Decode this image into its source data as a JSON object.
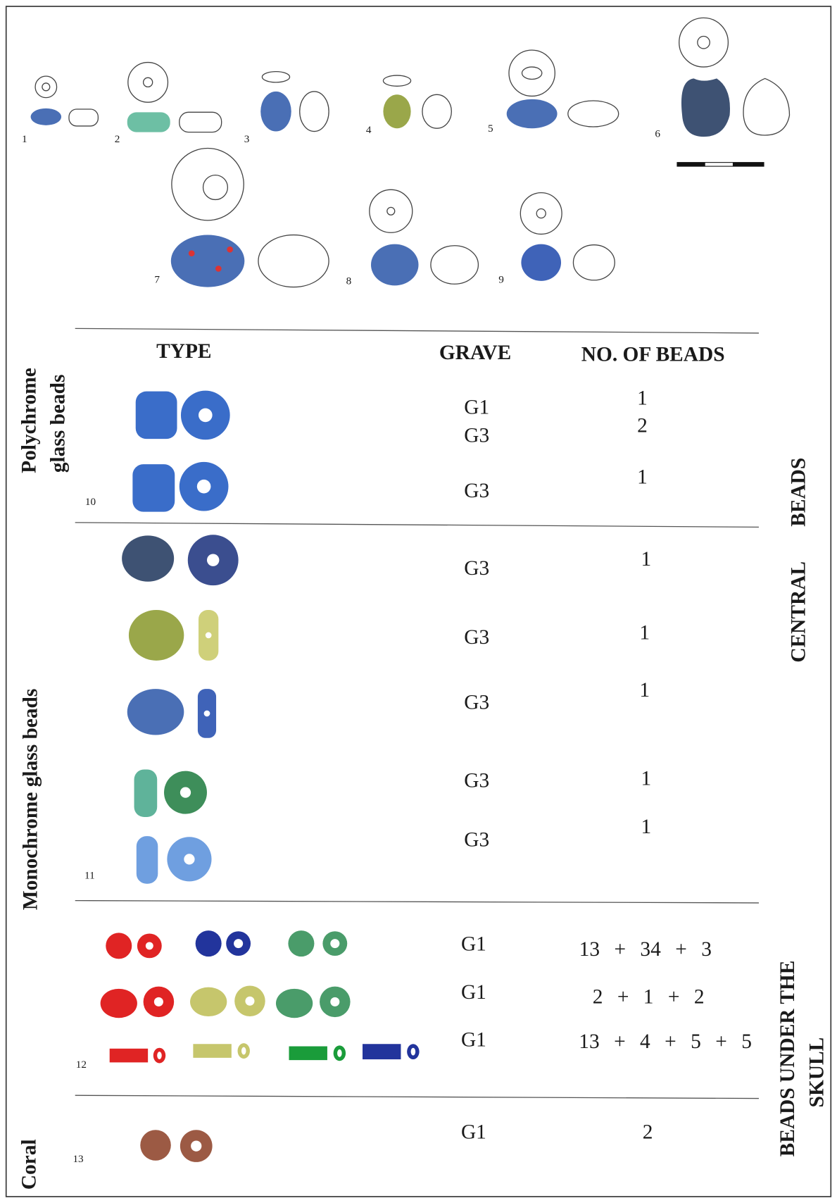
{
  "figure_numbers": [
    "1",
    "2",
    "3",
    "4",
    "5",
    "6",
    "7",
    "8",
    "9",
    "10",
    "11",
    "12",
    "13"
  ],
  "table": {
    "headers": [
      "TYPE",
      "GRAVE",
      "NO. OF BEADS"
    ],
    "groups": [
      [
        "Polychrome",
        "glass beads"
      ],
      [
        "Monochrome glass beads"
      ],
      [
        "Coral"
      ]
    ],
    "side_labels": [
      [
        "CENTRAL BEADS"
      ],
      [
        "BEADS UNDER THE",
        "SKULL"
      ]
    ],
    "rows": [
      {
        "grave": "G1",
        "count": "1"
      },
      {
        "grave": "G3",
        "count": "2"
      },
      {
        "grave": "G3",
        "count": "1"
      },
      {
        "grave": "G3",
        "count": "1"
      },
      {
        "grave": "G3",
        "count": "1"
      },
      {
        "grave": "G3",
        "count": "1"
      },
      {
        "grave": "G3",
        "count": "1"
      },
      {
        "grave": "G3",
        "count": "1"
      },
      {
        "grave": "G1",
        "count": "13 + 34 + 3"
      },
      {
        "grave": "G1",
        "count": "2 + 1 + 2"
      },
      {
        "grave": "G1",
        "count": "13 + 4 + 5 + 5"
      },
      {
        "grave": "G1",
        "count": "2"
      }
    ]
  }
}
